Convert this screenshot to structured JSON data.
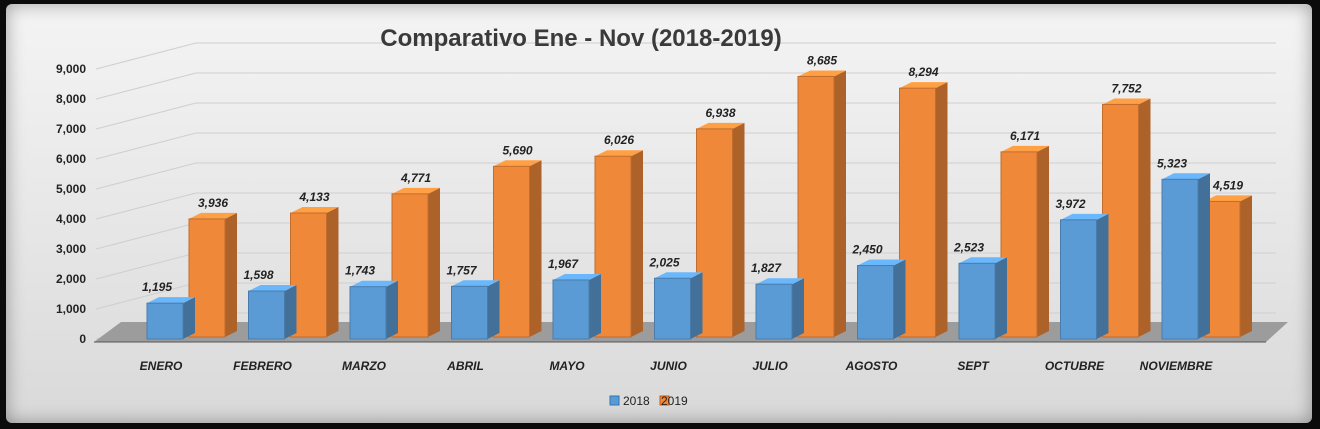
{
  "colors": {
    "series_2018": "#5b9bd5",
    "series_2019": "#f0883a"
  },
  "chart_data": {
    "type": "bar",
    "title": "Comparativo Ene - Nov (2018-2019)",
    "categories": [
      "ENERO",
      "FEBRERO",
      "MARZO",
      "ABRIL",
      "MAYO",
      "JUNIO",
      "JULIO",
      "AGOSTO",
      "SEPT",
      "OCTUBRE",
      "NOVIEMBRE"
    ],
    "series": [
      {
        "name": "2018",
        "values": [
          1195,
          1598,
          1743,
          1757,
          1967,
          2025,
          1827,
          2450,
          2523,
          3972,
          5323
        ],
        "labels": [
          "1,195",
          "1,598",
          "1,743",
          "1,757",
          "1,967",
          "2,025",
          "1,827",
          "2,450",
          "2,523",
          "3,972",
          "5,323"
        ]
      },
      {
        "name": "2019",
        "values": [
          3936,
          4133,
          4771,
          5690,
          6026,
          6938,
          8685,
          8294,
          6171,
          7752,
          4519
        ],
        "labels": [
          "3,936",
          "4,133",
          "4,771",
          "5,690",
          "6,026",
          "6,938",
          "8,685",
          "8,294",
          "6,171",
          "7,752",
          "4,519"
        ]
      }
    ],
    "yticks": [
      "0",
      "1,000",
      "2,000",
      "3,000",
      "4,000",
      "5,000",
      "6,000",
      "7,000",
      "8,000",
      "9,000"
    ],
    "ylim": [
      0,
      9000
    ],
    "xlabel": "",
    "ylabel": "",
    "legend": {
      "position": "bottom",
      "entries": [
        "2018",
        "2019"
      ]
    },
    "grid": true
  }
}
